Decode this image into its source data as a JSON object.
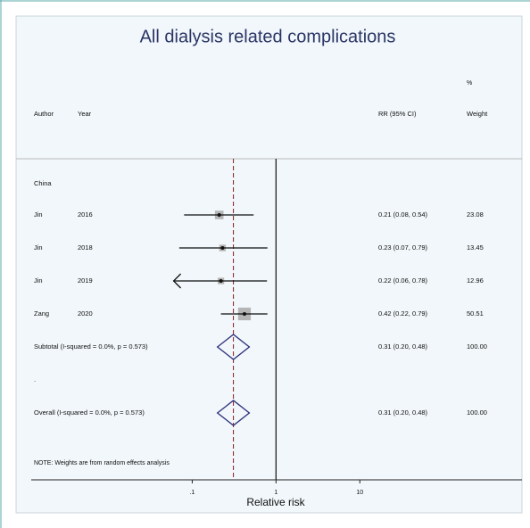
{
  "chart_data": {
    "type": "forest",
    "title": "All dialysis related complications",
    "headers": {
      "author": "Author",
      "year": "Year",
      "rr": "RR (95% CI)",
      "weight_unit": "%",
      "weight": "Weight"
    },
    "group": "China",
    "authors": [
      "Jin",
      "Jin",
      "Jin",
      "Zang"
    ],
    "years": [
      "2016",
      "2018",
      "2019",
      "2020"
    ],
    "values": [
      0.21,
      0.23,
      0.22,
      0.42
    ],
    "lower": [
      0.08,
      0.07,
      0.06,
      0.22
    ],
    "upper": [
      0.54,
      0.79,
      0.78,
      0.79
    ],
    "value_labels": [
      "0.21 (0.08, 0.54)",
      "0.23 (0.07, 0.79)",
      "0.22 (0.06, 0.78)",
      "0.42 (0.22, 0.79)"
    ],
    "weights": [
      23.08,
      13.45,
      12.96,
      50.51
    ],
    "clipped_low": [
      false,
      false,
      true,
      false
    ],
    "subtotal": {
      "label": "Subtotal  (I-squared = 0.0%, p = 0.573)",
      "value": 0.31,
      "lower": 0.2,
      "upper": 0.48,
      "value_label": "0.31 (0.20, 0.48)",
      "weight": 100,
      "weight_label": "100.00"
    },
    "spacer": ".",
    "overall": {
      "label": "Overall  (I-squared = 0.0%, p = 0.573)",
      "value": 0.31,
      "lower": 0.2,
      "upper": 0.48,
      "value_label": "0.31 (0.20, 0.48)",
      "weight": 100,
      "weight_label": "100.00"
    },
    "note": "NOTE: Weights are from random effects analysis",
    "xlabel": "Relative risk",
    "log_x": true,
    "null_value": 1,
    "xlim": [
      0.0012,
      860
    ],
    "xticks": [
      {
        "value": 0.1,
        "label": ".1"
      },
      1,
      10
    ],
    "colors": {
      "marker": "#b5b5b5",
      "diamond": "#2b2f7a",
      "overall_line": "#8b1a1a"
    }
  }
}
